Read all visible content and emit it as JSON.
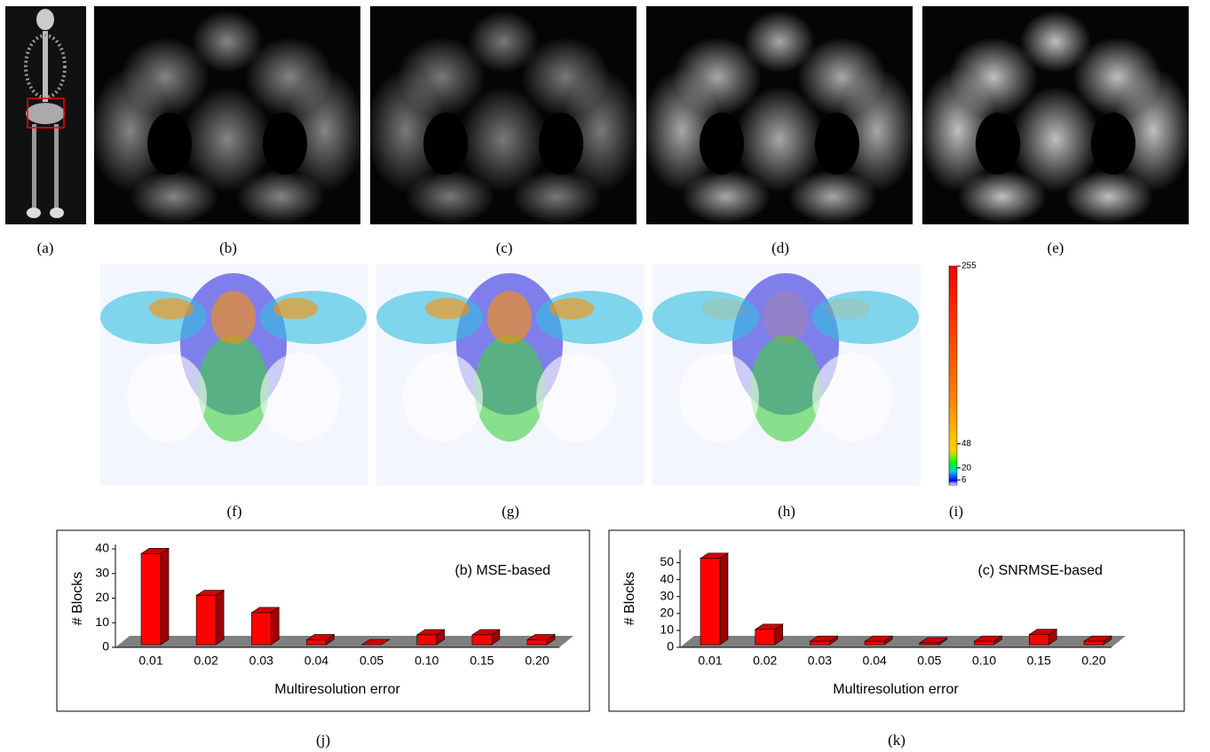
{
  "panel_labels": [
    "(a)",
    "(b)",
    "(c)",
    "(d)",
    "(e)",
    "(f)",
    "(g)",
    "(h)",
    "(i)",
    "(j)",
    "(k)"
  ],
  "colorbar": {
    "lim": [
      0,
      255
    ],
    "ticks": [
      255,
      48,
      20,
      6
    ]
  },
  "chart_data": [
    {
      "type": "bar",
      "annotation": "(b) MSE-based",
      "ylabel": "# Blocks",
      "xlabel": "Multiresolution error",
      "categories": [
        "0.01",
        "0.02",
        "0.03",
        "0.04",
        "0.05",
        "0.10",
        "0.15",
        "0.20"
      ],
      "values": [
        37,
        20,
        13,
        2,
        0,
        4,
        4,
        2
      ],
      "color": "#ff0000",
      "ylim": [
        0,
        40
      ],
      "yticks": [
        0,
        10,
        20,
        30,
        40
      ]
    },
    {
      "type": "bar",
      "annotation": "(c) SNRMSE-based",
      "ylabel": "# Blocks",
      "xlabel": "Multiresolution error",
      "categories": [
        "0.01",
        "0.02",
        "0.03",
        "0.04",
        "0.05",
        "0.10",
        "0.15",
        "0.20"
      ],
      "values": [
        51,
        9,
        2,
        2,
        1,
        2,
        6,
        2
      ],
      "color": "#ff0000",
      "ylim": [
        0,
        55
      ],
      "yticks": [
        0,
        10,
        20,
        30,
        40,
        50
      ]
    }
  ]
}
